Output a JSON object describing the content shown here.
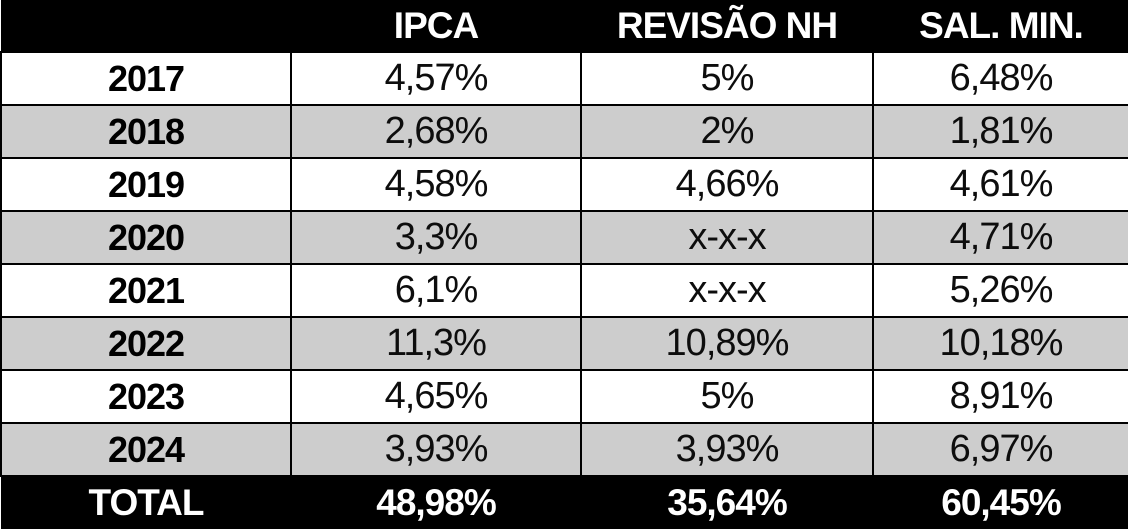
{
  "table": {
    "columns": [
      "",
      "IPCA",
      "REVISÃO NH",
      "SAL. MIN."
    ],
    "rows": [
      {
        "year": "2017",
        "values": [
          "4,57%",
          "5%",
          "6,48%"
        ]
      },
      {
        "year": "2018",
        "values": [
          "2,68%",
          "2%",
          "1,81%"
        ]
      },
      {
        "year": "2019",
        "values": [
          "4,58%",
          "4,66%",
          "4,61%"
        ]
      },
      {
        "year": "2020",
        "values": [
          "3,3%",
          "x-x-x",
          "4,71%"
        ]
      },
      {
        "year": "2021",
        "values": [
          "6,1%",
          "x-x-x",
          "5,26%"
        ]
      },
      {
        "year": "2022",
        "values": [
          "11,3%",
          "10,89%",
          "10,18%"
        ]
      },
      {
        "year": "2023",
        "values": [
          "4,65%",
          "5%",
          "8,91%"
        ]
      },
      {
        "year": "2024",
        "values": [
          "3,93%",
          "3,93%",
          "6,97%"
        ]
      }
    ],
    "total": {
      "label": "TOTAL",
      "values": [
        "48,98%",
        "35,64%",
        "60,45%"
      ]
    },
    "colors": {
      "header_bg": "#000000",
      "header_text": "#ffffff",
      "alt_row_bg": "#cdcdcd",
      "row_bg": "#ffffff",
      "border": "#000000",
      "total_bg": "#000000",
      "total_text": "#ffffff"
    }
  },
  "chart_data": {
    "type": "table",
    "title": "",
    "columns": [
      "",
      "IPCA",
      "REVISÃO NH",
      "SAL. MIN."
    ],
    "rows": [
      [
        "2017",
        "4,57%",
        "5%",
        "6,48%"
      ],
      [
        "2018",
        "2,68%",
        "2%",
        "1,81%"
      ],
      [
        "2019",
        "4,58%",
        "4,66%",
        "4,61%"
      ],
      [
        "2020",
        "3,3%",
        "x-x-x",
        "4,71%"
      ],
      [
        "2021",
        "6,1%",
        "x-x-x",
        "5,26%"
      ],
      [
        "2022",
        "11,3%",
        "10,89%",
        "10,18%"
      ],
      [
        "2023",
        "4,65%",
        "5%",
        "8,91%"
      ],
      [
        "2024",
        "3,93%",
        "3,93%",
        "6,97%"
      ],
      [
        "TOTAL",
        "48,98%",
        "35,64%",
        "60,45%"
      ]
    ],
    "layout_hints": {
      "alternating_row_shading": true,
      "header_style": "white-bold-on-black",
      "total_row_style": "white-bold-on-black",
      "decimal_separator": ","
    }
  }
}
